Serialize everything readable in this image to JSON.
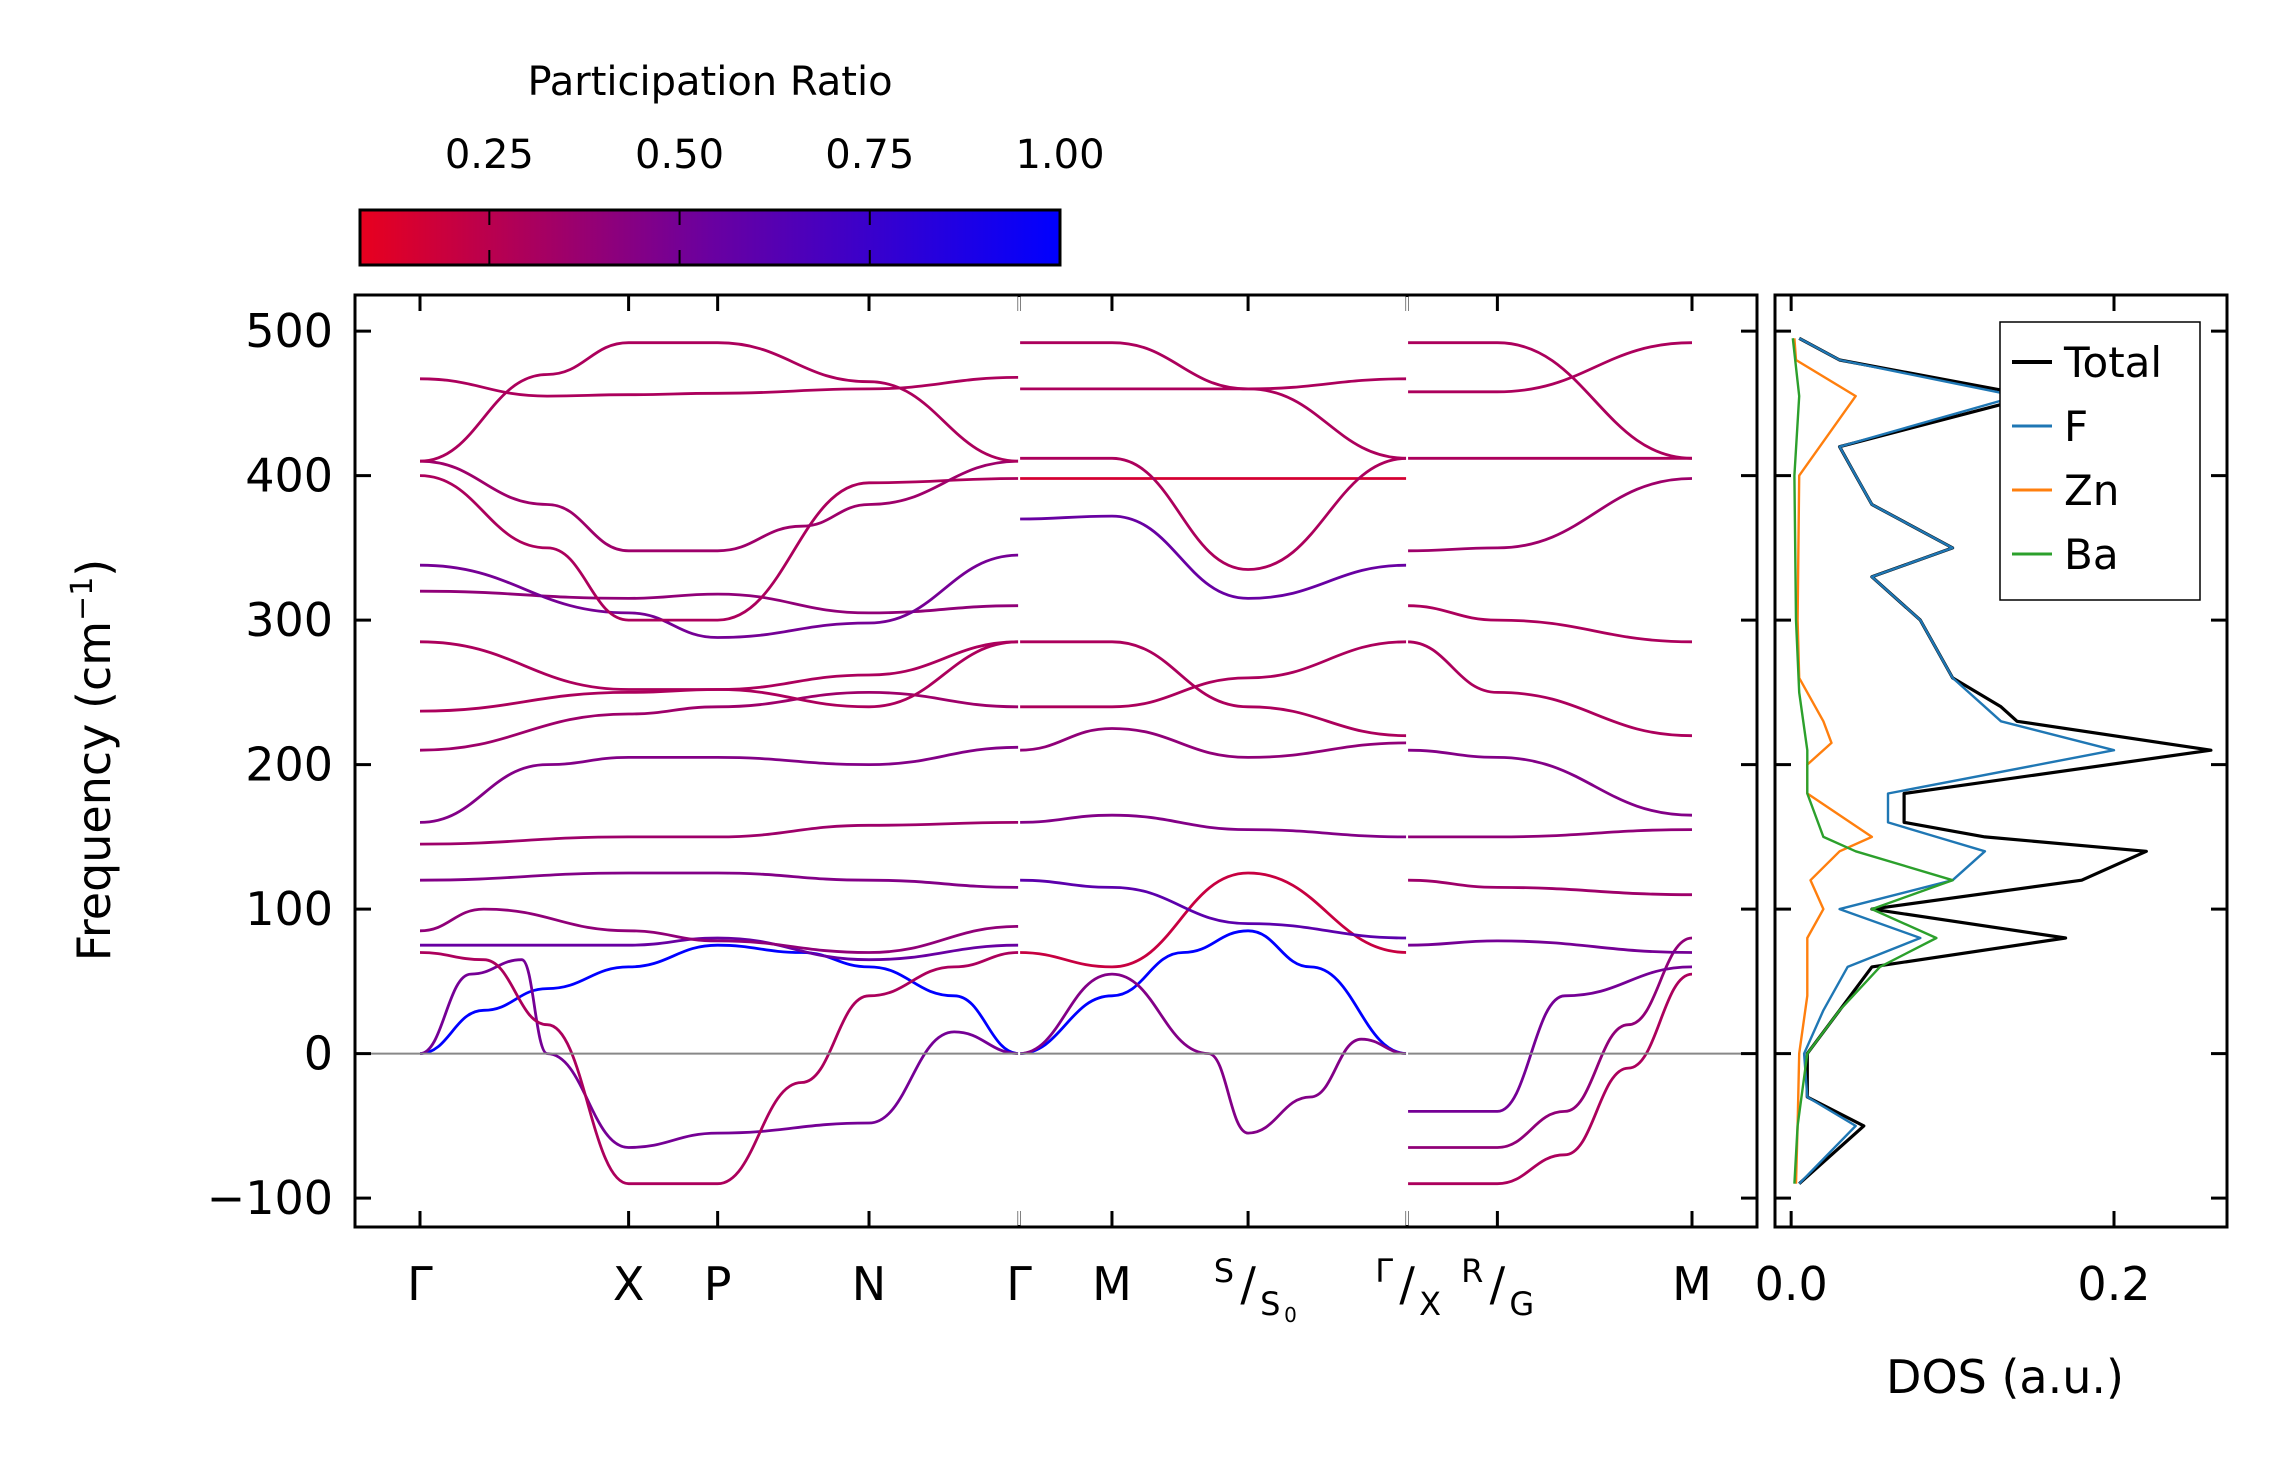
{
  "chart_data": [
    {
      "type": "line",
      "subtype": "phonon-band-structure",
      "ylabel_main": "Frequency (cm",
      "ylabel_sup": "−1",
      "ylabel_close": ")",
      "ylim": [
        -120,
        525
      ],
      "yticks": [
        -100,
        0,
        100,
        200,
        300,
        400,
        500
      ],
      "ytick_labels": [
        "−100",
        "0",
        "100",
        "200",
        "300",
        "400",
        "500"
      ],
      "path_labels": [
        {
          "id": "g1",
          "t": "Γ",
          "x": 0.0
        },
        {
          "id": "x",
          "t": "X",
          "x": 0.164
        },
        {
          "id": "p",
          "t": "P",
          "x": 0.234
        },
        {
          "id": "n",
          "t": "N",
          "x": 0.353
        },
        {
          "id": "g2",
          "t": "Γ",
          "x": 0.471
        },
        {
          "id": "m1",
          "t": "M",
          "x": 0.544
        },
        {
          "id": "s",
          "t": "S",
          "x": 0.651,
          "frac": true,
          "den": "S",
          "den_sub": "0"
        },
        {
          "id": "gx",
          "t": "Γ",
          "x": 0.776,
          "frac": true,
          "den": "X",
          "den_sub": ""
        },
        {
          "id": "rg",
          "t": "R",
          "x": 0.847,
          "frac": true,
          "den": "G",
          "den_sub": ""
        },
        {
          "id": "m2",
          "t": "M",
          "x": 1.0
        }
      ],
      "segments": [
        [
          0.0,
          0.471
        ],
        [
          0.471,
          0.776
        ],
        [
          0.776,
          1.0
        ]
      ],
      "colorbar": {
        "title": "Participation Ratio",
        "range": [
          0.08,
          1.0
        ],
        "ticks": [
          0.25,
          0.5,
          0.75,
          1.0
        ],
        "tick_labels": [
          "0.25",
          "0.50",
          "0.75",
          "1.00"
        ],
        "color_low": "#e8001e",
        "color_mid": "#6a00a0",
        "color_high": "#0000ff"
      },
      "bands": {
        "segment_1": [
          {
            "x": [
              0,
              0.05,
              0.1,
              0.164,
              0.234,
              0.3,
              0.353,
              0.42,
              0.471
            ],
            "y": [
              0,
              30,
              45,
              60,
              75,
              70,
              60,
              40,
              0
            ],
            "pr": 1.0
          },
          {
            "x": [
              0,
              0.04,
              0.08,
              0.1,
              0.164,
              0.234,
              0.353,
              0.42,
              0.471
            ],
            "y": [
              0,
              55,
              65,
              0,
              -65,
              -55,
              -48,
              15,
              0
            ],
            "pr": 0.5
          },
          {
            "x": [
              0,
              0.05,
              0.1,
              0.164,
              0.234,
              0.3,
              0.353,
              0.42,
              0.471
            ],
            "y": [
              70,
              65,
              20,
              -90,
              -90,
              -20,
              40,
              60,
              70
            ],
            "pr": 0.3
          },
          {
            "x": [
              0,
              0.164,
              0.234,
              0.353,
              0.471
            ],
            "y": [
              75,
              75,
              80,
              65,
              75
            ],
            "pr": 0.55
          },
          {
            "x": [
              0,
              0.05,
              0.164,
              0.234,
              0.353,
              0.471
            ],
            "y": [
              85,
              100,
              85,
              78,
              70,
              88
            ],
            "pr": 0.4
          },
          {
            "x": [
              0,
              0.164,
              0.234,
              0.353,
              0.471
            ],
            "y": [
              120,
              125,
              125,
              120,
              115
            ],
            "pr": 0.45
          },
          {
            "x": [
              0,
              0.164,
              0.234,
              0.353,
              0.471
            ],
            "y": [
              145,
              150,
              150,
              158,
              160
            ],
            "pr": 0.35
          },
          {
            "x": [
              0,
              0.1,
              0.164,
              0.234,
              0.353,
              0.471
            ],
            "y": [
              160,
              200,
              205,
              205,
              200,
              212
            ],
            "pr": 0.45
          },
          {
            "x": [
              0,
              0.164,
              0.234,
              0.353,
              0.471
            ],
            "y": [
              210,
              235,
              240,
              250,
              240
            ],
            "pr": 0.35
          },
          {
            "x": [
              0,
              0.164,
              0.234,
              0.353,
              0.471
            ],
            "y": [
              237,
              250,
              252,
              262,
              285
            ],
            "pr": 0.3
          },
          {
            "x": [
              0,
              0.164,
              0.234,
              0.353,
              0.471
            ],
            "y": [
              285,
              252,
              252,
              240,
              285
            ],
            "pr": 0.3
          },
          {
            "x": [
              0,
              0.164,
              0.234,
              0.353,
              0.471
            ],
            "y": [
              320,
              315,
              318,
              305,
              310
            ],
            "pr": 0.4
          },
          {
            "x": [
              0,
              0.164,
              0.234,
              0.353,
              0.471
            ],
            "y": [
              338,
              305,
              288,
              298,
              345
            ],
            "pr": 0.5
          },
          {
            "x": [
              0,
              0.1,
              0.164,
              0.234,
              0.353,
              0.471
            ],
            "y": [
              400,
              350,
              300,
              300,
              395,
              398
            ],
            "pr": 0.3
          },
          {
            "x": [
              0,
              0.1,
              0.164,
              0.234,
              0.3,
              0.353,
              0.471
            ],
            "y": [
              410,
              380,
              348,
              348,
              365,
              380,
              410
            ],
            "pr": 0.35
          },
          {
            "x": [
              0,
              0.1,
              0.164,
              0.234,
              0.353,
              0.471
            ],
            "y": [
              410,
              470,
              492,
              492,
              465,
              410
            ],
            "pr": 0.3
          },
          {
            "x": [
              0,
              0.1,
              0.164,
              0.234,
              0.353,
              0.471
            ],
            "y": [
              467,
              455,
              456,
              457,
              460,
              468
            ],
            "pr": 0.3
          }
        ],
        "segment_2": [
          {
            "x": [
              0.471,
              0.544,
              0.6,
              0.651,
              0.7,
              0.776
            ],
            "y": [
              0,
              40,
              70,
              85,
              60,
              0
            ],
            "pr": 1.0
          },
          {
            "x": [
              0.471,
              0.544,
              0.62,
              0.651,
              0.7,
              0.74,
              0.776
            ],
            "y": [
              0,
              55,
              0,
              -55,
              -30,
              10,
              0
            ],
            "pr": 0.45
          },
          {
            "x": [
              0.471,
              0.544,
              0.651,
              0.776
            ],
            "y": [
              70,
              60,
              125,
              70
            ],
            "pr": 0.2
          },
          {
            "x": [
              0.471,
              0.544,
              0.651,
              0.776
            ],
            "y": [
              120,
              115,
              90,
              80
            ],
            "pr": 0.6
          },
          {
            "x": [
              0.471,
              0.544,
              0.651,
              0.776
            ],
            "y": [
              160,
              165,
              155,
              150
            ],
            "pr": 0.45
          },
          {
            "x": [
              0.471,
              0.544,
              0.651,
              0.776
            ],
            "y": [
              210,
              225,
              205,
              215
            ],
            "pr": 0.4
          },
          {
            "x": [
              0.471,
              0.544,
              0.651,
              0.776
            ],
            "y": [
              240,
              240,
              260,
              285
            ],
            "pr": 0.3
          },
          {
            "x": [
              0.471,
              0.544,
              0.651,
              0.776
            ],
            "y": [
              285,
              285,
              240,
              220
            ],
            "pr": 0.3
          },
          {
            "x": [
              0.471,
              0.544,
              0.651,
              0.776
            ],
            "y": [
              370,
              372,
              315,
              338
            ],
            "pr": 0.55
          },
          {
            "x": [
              0.471,
              0.544,
              0.651,
              0.776
            ],
            "y": [
              398,
              398,
              398,
              398
            ],
            "pr": 0.15
          },
          {
            "x": [
              0.471,
              0.544,
              0.651,
              0.776
            ],
            "y": [
              412,
              412,
              335,
              412
            ],
            "pr": 0.3
          },
          {
            "x": [
              0.471,
              0.544,
              0.651,
              0.776
            ],
            "y": [
              492,
              492,
              460,
              412
            ],
            "pr": 0.3
          },
          {
            "x": [
              0.471,
              0.544,
              0.651,
              0.776
            ],
            "y": [
              460,
              460,
              460,
              467
            ],
            "pr": 0.3
          }
        ],
        "segment_3": [
          {
            "x": [
              0.776,
              0.847,
              0.9,
              0.95,
              1.0
            ],
            "y": [
              -90,
              -90,
              -70,
              -10,
              55
            ],
            "pr": 0.3
          },
          {
            "x": [
              0.776,
              0.847,
              0.9,
              0.95,
              1.0
            ],
            "y": [
              -65,
              -65,
              -40,
              20,
              80
            ],
            "pr": 0.4
          },
          {
            "x": [
              0.776,
              0.847,
              0.9,
              1.0
            ],
            "y": [
              -40,
              -40,
              40,
              60
            ],
            "pr": 0.5
          },
          {
            "x": [
              0.776,
              0.847,
              1.0
            ],
            "y": [
              75,
              78,
              70
            ],
            "pr": 0.5
          },
          {
            "x": [
              0.776,
              0.847,
              1.0
            ],
            "y": [
              120,
              115,
              110
            ],
            "pr": 0.35
          },
          {
            "x": [
              0.776,
              0.847,
              1.0
            ],
            "y": [
              150,
              150,
              155
            ],
            "pr": 0.4
          },
          {
            "x": [
              0.776,
              0.847,
              1.0
            ],
            "y": [
              210,
              205,
              165
            ],
            "pr": 0.45
          },
          {
            "x": [
              0.776,
              0.847,
              1.0
            ],
            "y": [
              285,
              250,
              220
            ],
            "pr": 0.3
          },
          {
            "x": [
              0.776,
              0.847,
              1.0
            ],
            "y": [
              310,
              300,
              285
            ],
            "pr": 0.3
          },
          {
            "x": [
              0.776,
              0.847,
              1.0
            ],
            "y": [
              348,
              350,
              398
            ],
            "pr": 0.35
          },
          {
            "x": [
              0.776,
              0.847,
              1.0
            ],
            "y": [
              412,
              412,
              412
            ],
            "pr": 0.3
          },
          {
            "x": [
              0.776,
              0.847,
              1.0
            ],
            "y": [
              458,
              458,
              492
            ],
            "pr": 0.3
          },
          {
            "x": [
              0.776,
              0.847,
              1.0
            ],
            "y": [
              492,
              492,
              412
            ],
            "pr": 0.3
          }
        ]
      }
    },
    {
      "type": "line",
      "subtype": "density-of-states",
      "xlabel": "DOS (a.u.)",
      "xlim": [
        -0.01,
        0.27
      ],
      "xticks": [
        0.0,
        0.2
      ],
      "xtick_labels": [
        "0.0",
        "0.2"
      ],
      "ylim": [
        -120,
        525
      ],
      "legend_position": "top-right",
      "series": [
        {
          "name": "Total",
          "color": "#000000",
          "y": [
            -90,
            -50,
            -30,
            0,
            30,
            60,
            80,
            100,
            120,
            140,
            150,
            160,
            180,
            210,
            230,
            240,
            260,
            300,
            330,
            350,
            380,
            400,
            420,
            455,
            480,
            495
          ],
          "values": [
            0.005,
            0.045,
            0.01,
            0.01,
            0.03,
            0.05,
            0.17,
            0.05,
            0.18,
            0.22,
            0.12,
            0.07,
            0.07,
            0.26,
            0.14,
            0.13,
            0.1,
            0.08,
            0.05,
            0.1,
            0.05,
            0.04,
            0.03,
            0.15,
            0.03,
            0.005
          ]
        },
        {
          "name": "F",
          "color": "#1f77b4",
          "y": [
            -90,
            -50,
            -30,
            0,
            30,
            60,
            80,
            100,
            120,
            140,
            150,
            160,
            180,
            210,
            230,
            240,
            260,
            300,
            330,
            350,
            380,
            400,
            420,
            455,
            480,
            495
          ],
          "values": [
            0.005,
            0.04,
            0.01,
            0.008,
            0.02,
            0.035,
            0.08,
            0.03,
            0.1,
            0.12,
            0.09,
            0.06,
            0.06,
            0.2,
            0.13,
            0.12,
            0.1,
            0.08,
            0.05,
            0.1,
            0.05,
            0.04,
            0.03,
            0.14,
            0.03,
            0.005
          ]
        },
        {
          "name": "Zn",
          "color": "#ff7f0e",
          "y": [
            -90,
            -50,
            0,
            40,
            80,
            100,
            120,
            140,
            150,
            180,
            200,
            215,
            230,
            260,
            300,
            400,
            455,
            480,
            495
          ],
          "values": [
            0.003,
            0.004,
            0.005,
            0.01,
            0.01,
            0.02,
            0.012,
            0.03,
            0.05,
            0.01,
            0.01,
            0.025,
            0.02,
            0.005,
            0.004,
            0.005,
            0.04,
            0.003,
            0.002
          ]
        },
        {
          "name": "Ba",
          "color": "#2ca02c",
          "y": [
            -90,
            -50,
            0,
            30,
            60,
            80,
            100,
            120,
            140,
            150,
            180,
            210,
            250,
            300,
            400,
            455,
            495
          ],
          "values": [
            0.002,
            0.004,
            0.01,
            0.03,
            0.055,
            0.09,
            0.05,
            0.1,
            0.04,
            0.02,
            0.01,
            0.01,
            0.005,
            0.003,
            0.002,
            0.005,
            0.001
          ]
        }
      ]
    }
  ]
}
